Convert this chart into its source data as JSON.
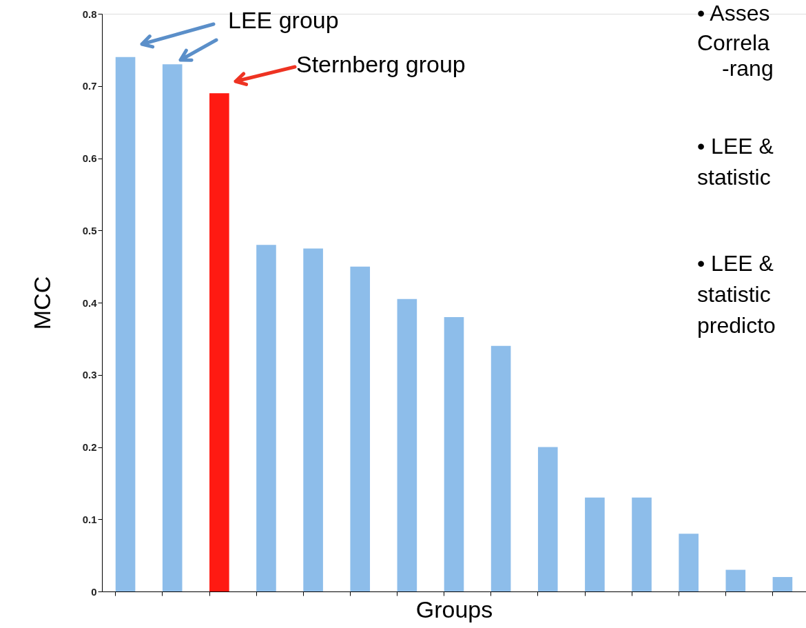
{
  "chart_data": {
    "type": "bar",
    "categories": [
      null,
      null,
      null,
      null,
      null,
      null,
      null,
      null,
      null,
      null,
      null,
      null,
      null,
      null,
      null
    ],
    "values": [
      0.74,
      0.73,
      0.69,
      0.48,
      0.475,
      0.45,
      0.405,
      0.38,
      0.34,
      0.2,
      0.13,
      0.13,
      0.08,
      0.03,
      0.02
    ],
    "colors": [
      "#8dbdea",
      "#8dbdea",
      "#ff1a12",
      "#8dbdea",
      "#8dbdea",
      "#8dbdea",
      "#8dbdea",
      "#8dbdea",
      "#8dbdea",
      "#8dbdea",
      "#8dbdea",
      "#8dbdea",
      "#8dbdea",
      "#8dbdea",
      "#8dbdea"
    ],
    "xlabel": "Groups",
    "ylabel": "MCC",
    "ylim": [
      0,
      0.8
    ],
    "yticks": [
      0,
      0.1,
      0.2,
      0.3,
      0.4,
      0.5,
      0.6,
      0.7,
      0.8
    ],
    "grid": false,
    "legend": false,
    "annotations": [
      "LEE group",
      "Sternberg group",
      "• Asses",
      "Correla",
      "-rang",
      "• LEE &",
      "statistic",
      "• LEE &",
      "statistic",
      "predicto"
    ]
  }
}
